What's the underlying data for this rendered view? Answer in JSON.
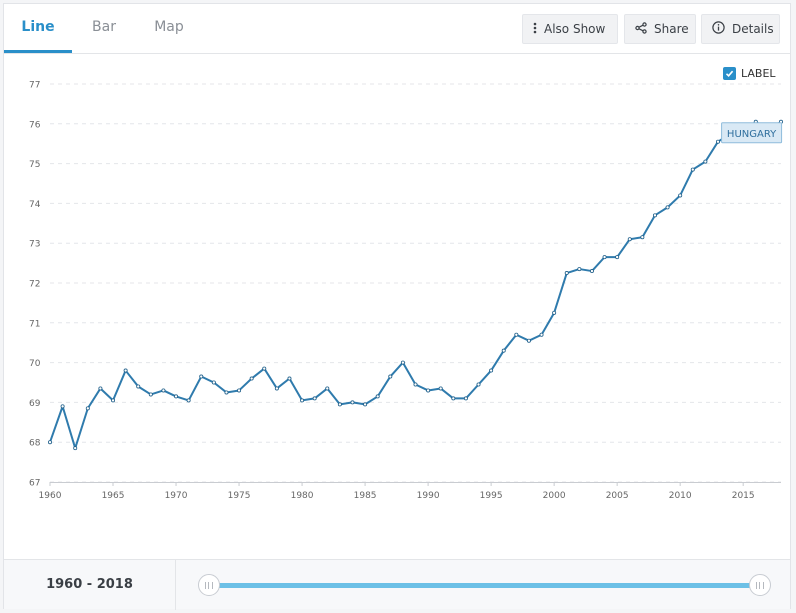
{
  "tabs": [
    {
      "label": "Line",
      "active": true
    },
    {
      "label": "Bar",
      "active": false
    },
    {
      "label": "Map",
      "active": false
    }
  ],
  "toolbar": {
    "also_show": {
      "label": "Also Show",
      "icon": "vertical-dots-icon"
    },
    "share": {
      "label": "Share",
      "icon": "share-icon"
    },
    "details": {
      "label": "Details",
      "icon": "info-icon"
    }
  },
  "label_toggle": {
    "label": "LABEL",
    "checked": true
  },
  "footer": {
    "range_start": "1960",
    "range_sep": " - ",
    "range_end": "2018"
  },
  "colors": {
    "accent": "#2a8fc9",
    "line": "#2f7bad",
    "slider": "#6cc0e6"
  },
  "chart_data": {
    "type": "line",
    "title": "",
    "xlabel": "",
    "ylabel": "",
    "xlim": [
      1960,
      2018
    ],
    "ylim": [
      67,
      77
    ],
    "x_ticks": [
      1960,
      1965,
      1970,
      1975,
      1980,
      1985,
      1990,
      1995,
      2000,
      2005,
      2010,
      2015
    ],
    "y_ticks": [
      67,
      68,
      69,
      70,
      71,
      72,
      73,
      74,
      75,
      76,
      77
    ],
    "grid": true,
    "series": [
      {
        "name": "HUNGARY",
        "x": [
          1960,
          1961,
          1962,
          1963,
          1964,
          1965,
          1966,
          1967,
          1968,
          1969,
          1970,
          1971,
          1972,
          1973,
          1974,
          1975,
          1976,
          1977,
          1978,
          1979,
          1980,
          1981,
          1982,
          1983,
          1984,
          1985,
          1986,
          1987,
          1988,
          1989,
          1990,
          1991,
          1992,
          1993,
          1994,
          1995,
          1996,
          1997,
          1998,
          1999,
          2000,
          2001,
          2002,
          2003,
          2004,
          2005,
          2006,
          2007,
          2008,
          2009,
          2010,
          2011,
          2012,
          2013,
          2014,
          2015,
          2016,
          2017,
          2018
        ],
        "y": [
          68.0,
          68.9,
          67.85,
          68.85,
          69.35,
          69.05,
          69.8,
          69.4,
          69.2,
          69.3,
          69.15,
          69.05,
          69.65,
          69.5,
          69.25,
          69.3,
          69.6,
          69.85,
          69.35,
          69.6,
          69.05,
          69.1,
          69.35,
          68.95,
          69.0,
          68.95,
          69.15,
          69.65,
          70.0,
          69.45,
          69.3,
          69.35,
          69.1,
          69.1,
          69.45,
          69.8,
          70.3,
          70.7,
          70.55,
          70.7,
          71.25,
          72.25,
          72.35,
          72.3,
          72.65,
          72.65,
          73.1,
          73.15,
          73.7,
          73.9,
          74.2,
          74.85,
          75.05,
          75.55,
          75.75,
          75.8,
          76.05,
          75.85,
          76.05
        ]
      }
    ]
  }
}
